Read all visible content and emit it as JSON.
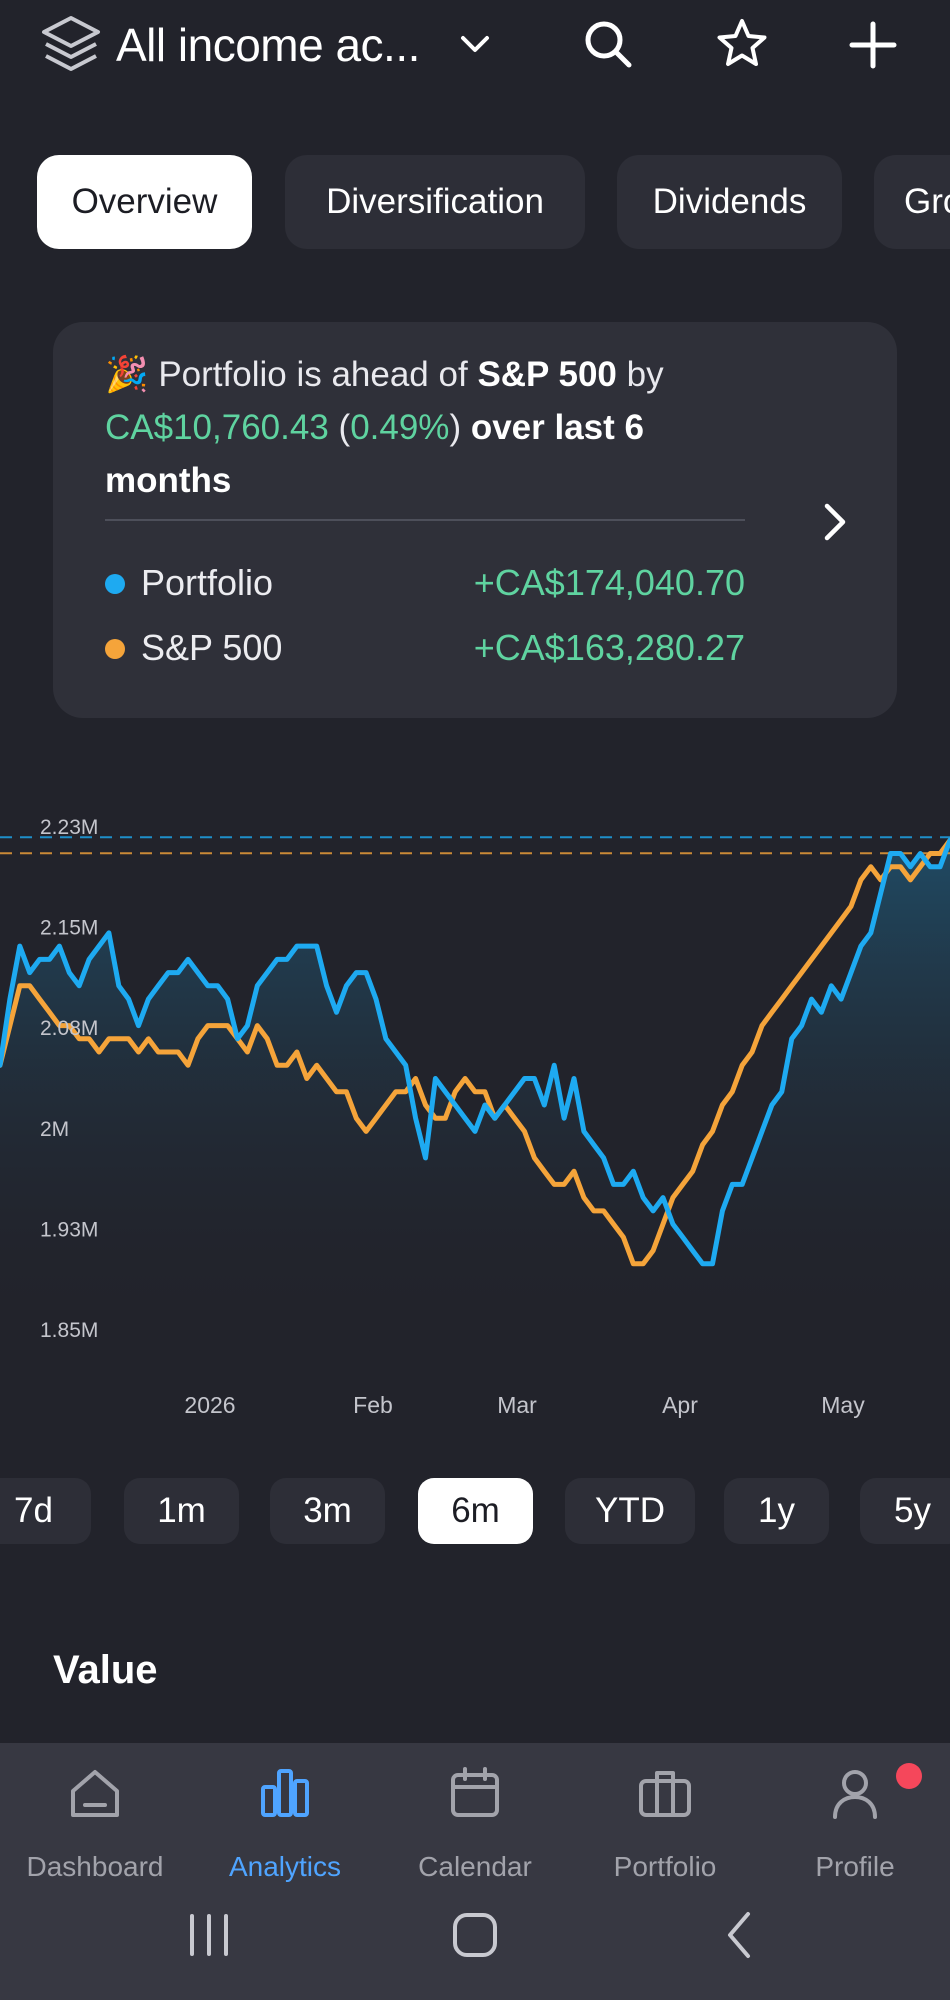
{
  "header": {
    "title": "All income ac...",
    "icons": [
      "layers-icon",
      "chevron-down-icon",
      "search-icon",
      "star-icon",
      "plus-icon"
    ]
  },
  "tabs": [
    {
      "label": "Overview",
      "active": true
    },
    {
      "label": "Diversification",
      "active": false
    },
    {
      "label": "Dividends",
      "active": false
    },
    {
      "label": "Gro",
      "active": false
    }
  ],
  "card": {
    "emoji": "🎉",
    "line_prefix": "Portfolio is ahead of",
    "benchmark": "S&P 500",
    "by": "by",
    "amount": "CA$10,760.43",
    "paren_open": "(",
    "percent": "0.49%",
    "paren_close": ")",
    "suffix": "over last 6 months",
    "legend": [
      {
        "name": "Portfolio",
        "value": "+CA$174,040.70",
        "color": "#1eaaf1"
      },
      {
        "name": "S&P 500",
        "value": "+CA$163,280.27",
        "color": "#f5a43a"
      }
    ]
  },
  "chart_data": {
    "type": "line",
    "y_ticks": [
      "2.23M",
      "2.15M",
      "2.08M",
      "2M",
      "1.93M",
      "1.85M"
    ],
    "ylim": [
      1.85,
      2.23
    ],
    "x_ticks": [
      "2026",
      "Feb",
      "Mar",
      "Apr",
      "May"
    ],
    "series": [
      {
        "name": "Portfolio",
        "color": "#1eaaf1",
        "values": [
          2.05,
          2.1,
          2.14,
          2.12,
          2.13,
          2.13,
          2.14,
          2.12,
          2.11,
          2.13,
          2.14,
          2.15,
          2.11,
          2.1,
          2.08,
          2.1,
          2.11,
          2.12,
          2.12,
          2.13,
          2.12,
          2.11,
          2.11,
          2.1,
          2.07,
          2.08,
          2.11,
          2.12,
          2.13,
          2.13,
          2.14,
          2.14,
          2.14,
          2.11,
          2.09,
          2.11,
          2.12,
          2.12,
          2.1,
          2.07,
          2.06,
          2.05,
          2.01,
          1.98,
          2.04,
          2.03,
          2.02,
          2.01,
          2.0,
          2.02,
          2.01,
          2.02,
          2.03,
          2.04,
          2.04,
          2.02,
          2.05,
          2.01,
          2.04,
          2.0,
          1.99,
          1.98,
          1.96,
          1.96,
          1.97,
          1.95,
          1.94,
          1.95,
          1.93,
          1.92,
          1.91,
          1.9,
          1.9,
          1.94,
          1.96,
          1.96,
          1.98,
          2.0,
          2.02,
          2.03,
          2.07,
          2.08,
          2.1,
          2.09,
          2.11,
          2.1,
          2.12,
          2.14,
          2.15,
          2.18,
          2.21,
          2.21,
          2.2,
          2.21,
          2.2,
          2.2,
          2.22
        ]
      },
      {
        "name": "S&P 500",
        "color": "#f5a43a",
        "values": [
          2.05,
          2.08,
          2.11,
          2.11,
          2.1,
          2.09,
          2.08,
          2.08,
          2.07,
          2.07,
          2.06,
          2.07,
          2.07,
          2.07,
          2.06,
          2.07,
          2.06,
          2.06,
          2.06,
          2.05,
          2.07,
          2.08,
          2.08,
          2.08,
          2.07,
          2.06,
          2.08,
          2.07,
          2.05,
          2.05,
          2.06,
          2.04,
          2.05,
          2.04,
          2.03,
          2.03,
          2.01,
          2.0,
          2.01,
          2.02,
          2.03,
          2.03,
          2.04,
          2.02,
          2.01,
          2.01,
          2.03,
          2.04,
          2.03,
          2.03,
          2.01,
          2.02,
          2.01,
          2.0,
          1.98,
          1.97,
          1.96,
          1.96,
          1.97,
          1.95,
          1.94,
          1.94,
          1.93,
          1.92,
          1.9,
          1.9,
          1.91,
          1.93,
          1.95,
          1.96,
          1.97,
          1.99,
          2.0,
          2.02,
          2.03,
          2.05,
          2.06,
          2.08,
          2.09,
          2.1,
          2.11,
          2.12,
          2.13,
          2.14,
          2.15,
          2.16,
          2.17,
          2.19,
          2.2,
          2.19,
          2.2,
          2.2,
          2.19,
          2.2,
          2.21,
          2.21,
          2.22
        ]
      }
    ]
  },
  "ranges": [
    {
      "label": "7d",
      "active": false
    },
    {
      "label": "1m",
      "active": false
    },
    {
      "label": "3m",
      "active": false
    },
    {
      "label": "6m",
      "active": true
    },
    {
      "label": "YTD",
      "active": false
    },
    {
      "label": "1y",
      "active": false
    },
    {
      "label": "5y",
      "active": false
    }
  ],
  "section_title": "Value",
  "nav": [
    {
      "label": "Dashboard",
      "icon": "home-icon",
      "active": false
    },
    {
      "label": "Analytics",
      "icon": "bar-chart-icon",
      "active": true
    },
    {
      "label": "Calendar",
      "icon": "calendar-icon",
      "active": false
    },
    {
      "label": "Portfolio",
      "icon": "briefcase-icon",
      "active": false
    },
    {
      "label": "Profile",
      "icon": "user-icon",
      "active": false,
      "badge": true
    }
  ],
  "colors": {
    "background": "#22232b",
    "card": "#2f3039",
    "positive": "#5fd3a0",
    "accent": "#4fa4ff",
    "badge": "#f5475b"
  }
}
